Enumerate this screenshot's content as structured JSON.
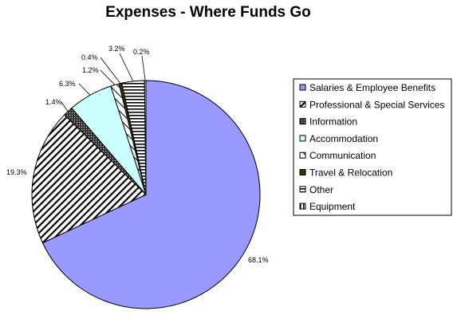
{
  "chart_data": {
    "type": "pie",
    "title": "Expenses - Where Funds Go",
    "legend_position": "right",
    "slices": [
      {
        "name": "Salaries & Employee Benefits",
        "label": "68.1%",
        "value": 68.1,
        "fill": "#9999ff",
        "pattern": "solid"
      },
      {
        "name": "Professional & Special Services",
        "label": "19.3%",
        "value": 19.3,
        "fill": "#ffffff",
        "pattern": "diagonal-stripes"
      },
      {
        "name": "Information",
        "label": "1.4%",
        "value": 1.4,
        "fill": "#333333",
        "pattern": "dense-dots"
      },
      {
        "name": "Accommodation",
        "label": "6.3%",
        "value": 6.3,
        "fill": "#ccffff",
        "pattern": "solid"
      },
      {
        "name": "Communication",
        "label": "1.2%",
        "value": 1.2,
        "fill": "#ffffff",
        "pattern": "light-diagonal"
      },
      {
        "name": "Travel & Relocation",
        "label": "0.4%",
        "value": 0.4,
        "fill": "#333300",
        "pattern": "solid"
      },
      {
        "name": "Other",
        "label": "3.2%",
        "value": 3.2,
        "fill": "#ffffff",
        "pattern": "horizontal-stripes"
      },
      {
        "name": "Equipment",
        "label": "0.2%",
        "value": 0.2,
        "fill": "#ffffff",
        "pattern": "vertical-stripes"
      }
    ]
  }
}
